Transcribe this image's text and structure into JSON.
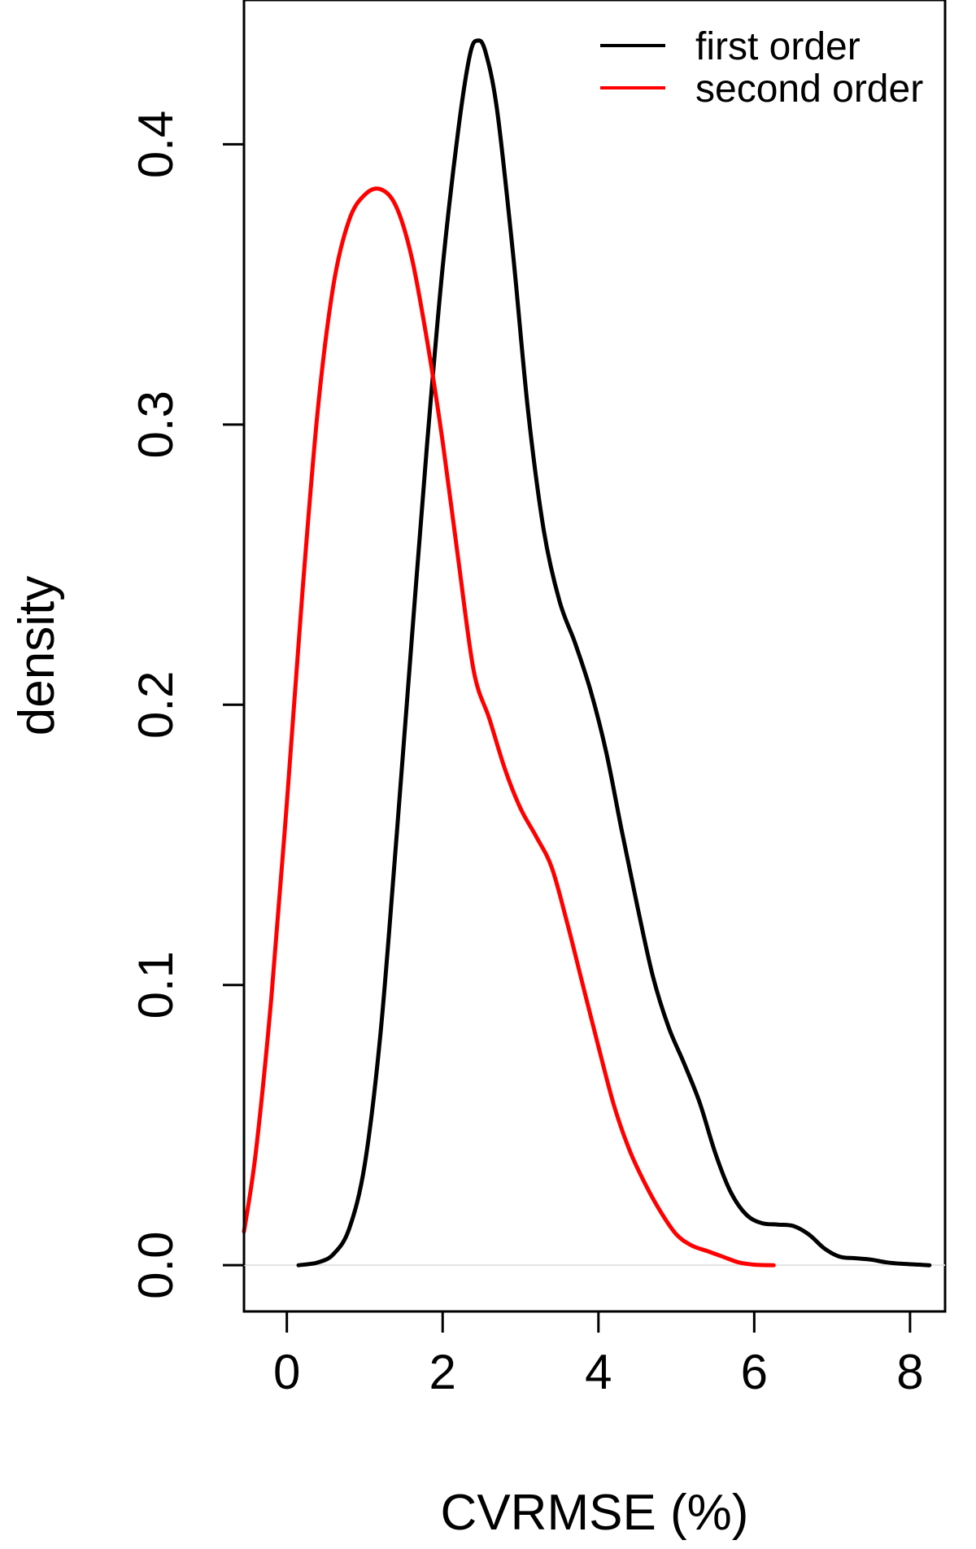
{
  "chart_data": {
    "type": "line",
    "xlabel": "CVRMSE (%)",
    "ylabel": "density",
    "xlim": [
      -0.55,
      8.45
    ],
    "ylim": [
      -0.0165,
      0.4515
    ],
    "xticks": [
      "0",
      "2",
      "4",
      "6",
      "8"
    ],
    "xtick_values": [
      0,
      2,
      4,
      6,
      8
    ],
    "yticks": [
      "0.0",
      "0.1",
      "0.2",
      "0.3",
      "0.4"
    ],
    "ytick_values": [
      0.0,
      0.1,
      0.2,
      0.3,
      0.4
    ],
    "grid": false,
    "zero_line": true,
    "legend_position": "top-right",
    "series": [
      {
        "name": "first order",
        "color": "#000000",
        "points": [
          [
            0.15,
            0.0
          ],
          [
            0.4,
            0.001
          ],
          [
            0.6,
            0.004
          ],
          [
            0.8,
            0.013
          ],
          [
            1.0,
            0.036
          ],
          [
            1.2,
            0.082
          ],
          [
            1.4,
            0.15
          ],
          [
            1.6,
            0.222
          ],
          [
            1.8,
            0.293
          ],
          [
            2.0,
            0.356
          ],
          [
            2.2,
            0.405
          ],
          [
            2.35,
            0.432
          ],
          [
            2.45,
            0.437
          ],
          [
            2.55,
            0.433
          ],
          [
            2.7,
            0.412
          ],
          [
            2.9,
            0.362
          ],
          [
            3.1,
            0.304
          ],
          [
            3.3,
            0.262
          ],
          [
            3.5,
            0.237
          ],
          [
            3.7,
            0.222
          ],
          [
            3.9,
            0.205
          ],
          [
            4.1,
            0.183
          ],
          [
            4.3,
            0.155
          ],
          [
            4.5,
            0.128
          ],
          [
            4.7,
            0.103
          ],
          [
            4.9,
            0.085
          ],
          [
            5.1,
            0.072
          ],
          [
            5.3,
            0.058
          ],
          [
            5.5,
            0.04
          ],
          [
            5.7,
            0.026
          ],
          [
            5.9,
            0.018
          ],
          [
            6.1,
            0.015
          ],
          [
            6.3,
            0.0145
          ],
          [
            6.5,
            0.014
          ],
          [
            6.7,
            0.011
          ],
          [
            6.9,
            0.006
          ],
          [
            7.1,
            0.003
          ],
          [
            7.3,
            0.0025
          ],
          [
            7.5,
            0.002
          ],
          [
            7.7,
            0.001
          ],
          [
            7.9,
            0.0005
          ],
          [
            8.25,
            0.0
          ]
        ]
      },
      {
        "name": "second order",
        "color": "#ff0000",
        "points": [
          [
            -0.55,
            0.012
          ],
          [
            -0.4,
            0.04
          ],
          [
            -0.2,
            0.095
          ],
          [
            0.0,
            0.165
          ],
          [
            0.2,
            0.24
          ],
          [
            0.4,
            0.306
          ],
          [
            0.6,
            0.35
          ],
          [
            0.8,
            0.373
          ],
          [
            1.0,
            0.382
          ],
          [
            1.2,
            0.384
          ],
          [
            1.4,
            0.378
          ],
          [
            1.6,
            0.36
          ],
          [
            1.8,
            0.33
          ],
          [
            2.0,
            0.294
          ],
          [
            2.2,
            0.252
          ],
          [
            2.4,
            0.212
          ],
          [
            2.6,
            0.195
          ],
          [
            2.8,
            0.177
          ],
          [
            3.0,
            0.163
          ],
          [
            3.2,
            0.153
          ],
          [
            3.4,
            0.142
          ],
          [
            3.6,
            0.122
          ],
          [
            3.8,
            0.1
          ],
          [
            4.0,
            0.078
          ],
          [
            4.2,
            0.057
          ],
          [
            4.4,
            0.041
          ],
          [
            4.6,
            0.029
          ],
          [
            4.8,
            0.019
          ],
          [
            5.0,
            0.011
          ],
          [
            5.2,
            0.007
          ],
          [
            5.4,
            0.005
          ],
          [
            5.6,
            0.003
          ],
          [
            5.8,
            0.001
          ],
          [
            6.0,
            0.0002
          ],
          [
            6.25,
            0.0
          ]
        ]
      }
    ]
  }
}
